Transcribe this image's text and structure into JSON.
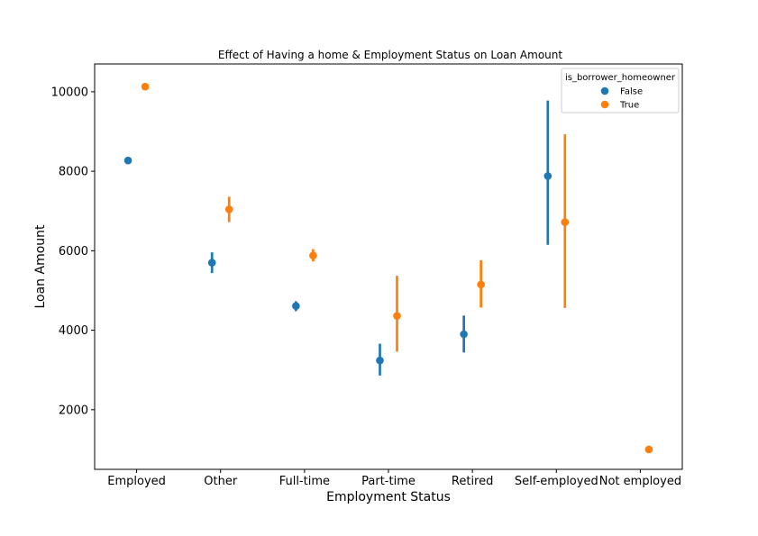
{
  "chart_data": {
    "type": "pointplot",
    "title": "Effect of Having a home & Employment Status on Loan Amount",
    "xlabel": "Employment Status",
    "ylabel": "Loan Amount",
    "categories": [
      "Employed",
      "Other",
      "Full-time",
      "Part-time",
      "Retired",
      "Self-employed",
      "Not employed"
    ],
    "ylim": [
      500,
      10700
    ],
    "yticks": [
      2000,
      4000,
      6000,
      8000,
      10000
    ],
    "legend": {
      "title": "is_borrower_homeowner",
      "placement": "top-right"
    },
    "grid": false,
    "series": [
      {
        "name": "False",
        "color": "#1f77b4",
        "values": [
          8270,
          5700,
          4610,
          3240,
          3900,
          7880,
          null
        ],
        "ci_low": [
          8270,
          5440,
          4480,
          2860,
          3440,
          6150,
          null
        ],
        "ci_high": [
          8270,
          5960,
          4730,
          3660,
          4370,
          9780,
          null
        ]
      },
      {
        "name": "True",
        "color": "#ff7f0e",
        "values": [
          10130,
          7040,
          5880,
          4360,
          5150,
          6720,
          1000
        ],
        "ci_low": [
          10130,
          6720,
          5730,
          3460,
          4570,
          4560,
          1000
        ],
        "ci_high": [
          10130,
          7360,
          6040,
          5370,
          5760,
          8930,
          1000
        ]
      }
    ]
  }
}
